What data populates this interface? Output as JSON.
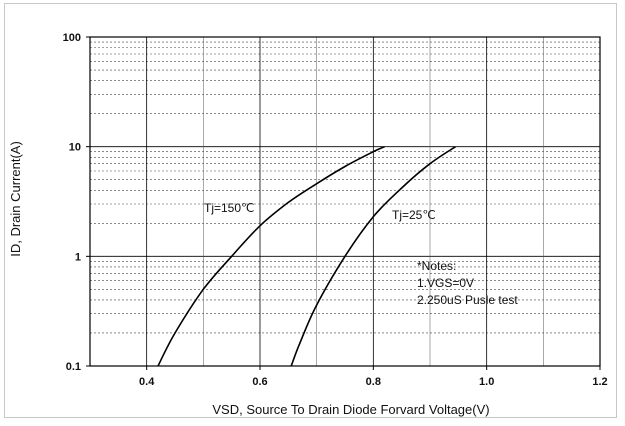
{
  "chart_data": {
    "type": "line",
    "title": "",
    "xlabel": "VSD, Source To Drain Diode Forvard Voltage(V)",
    "ylabel": "ID, Drain Current(A)",
    "xlim": [
      0.3,
      1.2
    ],
    "ylim": [
      0.1,
      100
    ],
    "y_scale": "log",
    "grid": true,
    "x_ticks": [
      0.4,
      0.6,
      0.8,
      1.0,
      1.2
    ],
    "x_tick_labels": [
      "0.4",
      "0.6",
      "0.8",
      "1.0",
      "1.2"
    ],
    "y_ticks": [
      0.1,
      1,
      10,
      100
    ],
    "y_tick_labels": [
      "0.1",
      "1",
      "10",
      "100"
    ],
    "series": [
      {
        "name": "Tj=150℃",
        "color": "#000000",
        "x": [
          0.42,
          0.45,
          0.5,
          0.55,
          0.6,
          0.65,
          0.7,
          0.75,
          0.8,
          0.82
        ],
        "y": [
          0.1,
          0.2,
          0.5,
          1.0,
          1.9,
          3.1,
          4.6,
          6.6,
          9.0,
          10.0
        ]
      },
      {
        "name": "Tj=25℃",
        "color": "#000000",
        "x": [
          0.655,
          0.67,
          0.7,
          0.75,
          0.8,
          0.85,
          0.9,
          0.945
        ],
        "y": [
          0.1,
          0.16,
          0.36,
          1.0,
          2.3,
          4.2,
          7.0,
          10.0
        ]
      }
    ],
    "annotations": [
      "*Notes:",
      "1.VGS=0V",
      "2.250uS Pusle test"
    ]
  }
}
